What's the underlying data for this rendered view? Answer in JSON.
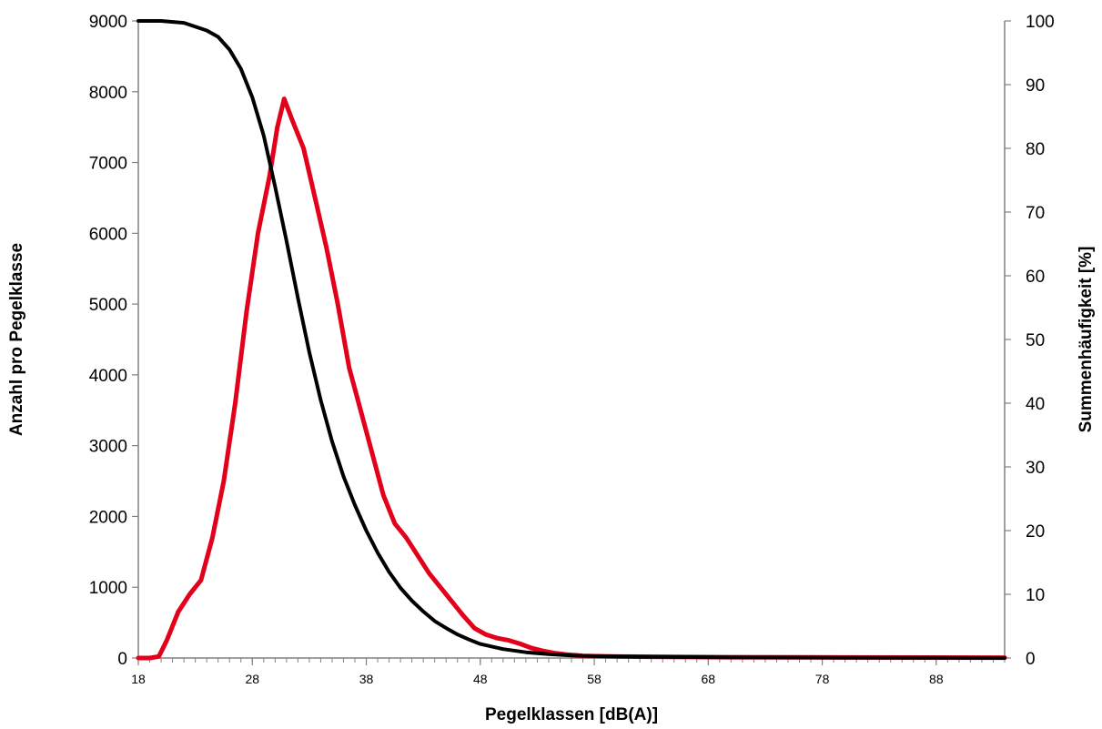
{
  "chart_data": {
    "type": "line",
    "title": "",
    "xlabel": "Pegelklassen [dB(A)]",
    "ylabel_left": "Anzahl pro Pegelklasse",
    "ylabel_right": "Summenhäufigkeit [%]",
    "xlim": [
      18,
      94
    ],
    "ylim_left": [
      0,
      9000
    ],
    "ylim_right": [
      0,
      100
    ],
    "xticks": [
      "18",
      "28",
      "38",
      "48",
      "58",
      "68",
      "78",
      "88"
    ],
    "yticks_left": [
      "0",
      "1000",
      "2000",
      "3000",
      "4000",
      "5000",
      "6000",
      "7000",
      "8000",
      "9000"
    ],
    "yticks_right": [
      "0",
      "10",
      "20",
      "30",
      "40",
      "50",
      "60",
      "70",
      "80",
      "90",
      "100"
    ],
    "grid": false,
    "legend": "none",
    "series": [
      {
        "color": "#e3001b",
        "axis": "left",
        "x": [
          18,
          19,
          19.8,
          20.5,
          21.5,
          22.5,
          23.5,
          24.5,
          25.5,
          26.5,
          27.5,
          28.5,
          29.5,
          30.2,
          30.8,
          31.5,
          32.5,
          33.5,
          34.5,
          35.5,
          36.5,
          37.5,
          38.5,
          39.5,
          40.5,
          41.5,
          42.5,
          43.5,
          44.5,
          45.5,
          46.5,
          47.5,
          48.5,
          49.5,
          50.5,
          51.5,
          52.5,
          53.5,
          54.5,
          55.5,
          57,
          60,
          65,
          70,
          80,
          94
        ],
        "y": [
          0,
          0,
          20,
          250,
          650,
          900,
          1100,
          1700,
          2500,
          3600,
          4900,
          6000,
          6800,
          7500,
          7900,
          7600,
          7200,
          6500,
          5800,
          5000,
          4100,
          3500,
          2900,
          2300,
          1900,
          1700,
          1450,
          1200,
          1000,
          800,
          600,
          420,
          330,
          280,
          250,
          200,
          140,
          100,
          70,
          50,
          30,
          20,
          15,
          12,
          8,
          5
        ]
      },
      {
        "color": "#000000",
        "axis": "right",
        "x": [
          18,
          20,
          22,
          24,
          25,
          26,
          27,
          28,
          29,
          30,
          31,
          32,
          33,
          34,
          35,
          36,
          37,
          38,
          39,
          40,
          41,
          42,
          43,
          44,
          45,
          46,
          47,
          48,
          50,
          52,
          54,
          56,
          58,
          62,
          66,
          70,
          80,
          94
        ],
        "y": [
          100,
          100,
          99.7,
          98.5,
          97.5,
          95.5,
          92.5,
          88,
          82,
          74,
          65.5,
          56.5,
          48,
          40.5,
          34,
          28.5,
          24,
          20,
          16.5,
          13.5,
          11,
          9,
          7.3,
          5.8,
          4.7,
          3.7,
          2.9,
          2.2,
          1.4,
          0.9,
          0.6,
          0.4,
          0.3,
          0.2,
          0.15,
          0.1,
          0.05,
          0
        ]
      }
    ]
  }
}
